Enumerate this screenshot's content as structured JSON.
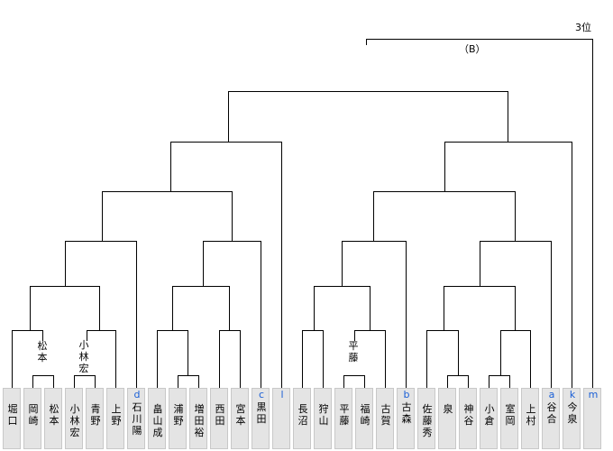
{
  "entries": [
    {
      "name": "堀\n口",
      "tag": ""
    },
    {
      "name": "岡\n崎",
      "tag": ""
    },
    {
      "name": "松\n本",
      "tag": ""
    },
    {
      "name": "小\n林\n宏",
      "tag": ""
    },
    {
      "name": "青\n野",
      "tag": ""
    },
    {
      "name": "上\n野",
      "tag": ""
    },
    {
      "name": "石\n川\n陽",
      "tag": "d"
    },
    {
      "name": "畠\n山\n成",
      "tag": ""
    },
    {
      "name": "浦\n野",
      "tag": ""
    },
    {
      "name": "増\n田\n裕",
      "tag": ""
    },
    {
      "name": "西\n田",
      "tag": ""
    },
    {
      "name": "宮\n本",
      "tag": ""
    },
    {
      "name": "黒\n田",
      "tag": "c"
    },
    {
      "name": "",
      "tag": "l"
    },
    {
      "name": "長\n沼",
      "tag": ""
    },
    {
      "name": "狩\n山",
      "tag": ""
    },
    {
      "name": "平\n藤",
      "tag": ""
    },
    {
      "name": "福\n崎",
      "tag": ""
    },
    {
      "name": "古\n賀",
      "tag": ""
    },
    {
      "name": "古\n森",
      "tag": "b"
    },
    {
      "name": "佐\n藤\n秀",
      "tag": ""
    },
    {
      "name": "泉",
      "tag": ""
    },
    {
      "name": "神\n谷",
      "tag": ""
    },
    {
      "name": "小\n倉",
      "tag": ""
    },
    {
      "name": "室\n岡",
      "tag": ""
    },
    {
      "name": "上\n村",
      "tag": ""
    },
    {
      "name": "谷\n合",
      "tag": "a"
    },
    {
      "name": "今\n泉",
      "tag": "k"
    },
    {
      "name": "",
      "tag": "m"
    }
  ],
  "advance_labels": {
    "m1": "松\n本",
    "m2": "小\n林\n宏",
    "m3": "平\n藤"
  },
  "captions": {
    "third_place": "3位",
    "bracket_name": "（B）"
  },
  "line_color": "#000000"
}
